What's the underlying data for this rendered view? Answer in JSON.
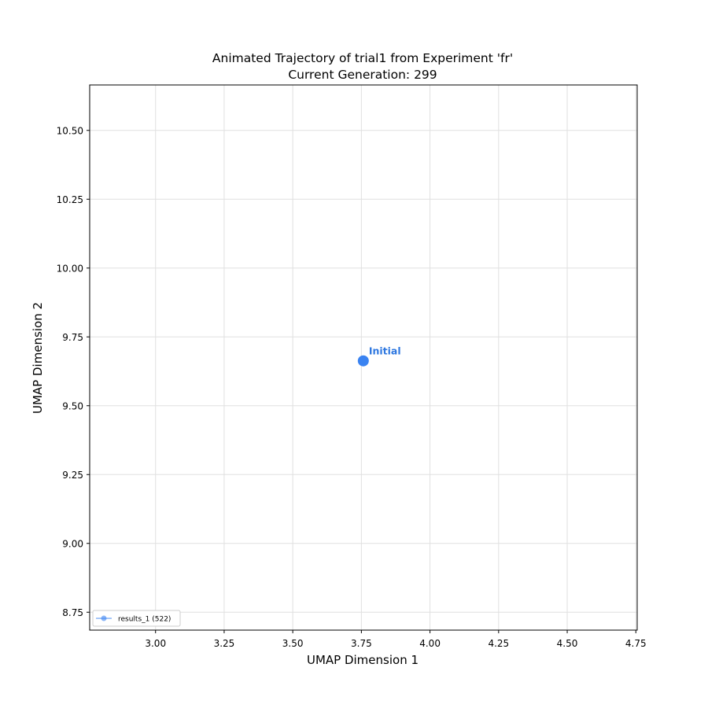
{
  "chart_data": {
    "type": "scatter",
    "title": "Animated Trajectory of trial1 from Experiment 'fr'",
    "subtitle": "Current Generation: 299",
    "xlabel": "UMAP Dimension 1",
    "ylabel": "UMAP Dimension 2",
    "xlim": [
      2.76,
      4.755
    ],
    "ylim": [
      8.685,
      10.665
    ],
    "xticks": [
      "3.00",
      "3.25",
      "3.50",
      "3.75",
      "4.00",
      "4.25",
      "4.50",
      "4.75"
    ],
    "yticks": [
      "8.75",
      "9.00",
      "9.25",
      "9.50",
      "9.75",
      "10.00",
      "10.25",
      "10.50"
    ],
    "grid": true,
    "legend_position": "lower-left",
    "series": [
      {
        "name": "results_1 (522)",
        "color": "#3a83f1",
        "points": [
          {
            "x": 3.757,
            "y": 9.663
          }
        ]
      }
    ],
    "annotations": [
      {
        "text": "Initial",
        "x": 3.757,
        "y": 9.663,
        "color": "#2f78e0"
      }
    ]
  }
}
